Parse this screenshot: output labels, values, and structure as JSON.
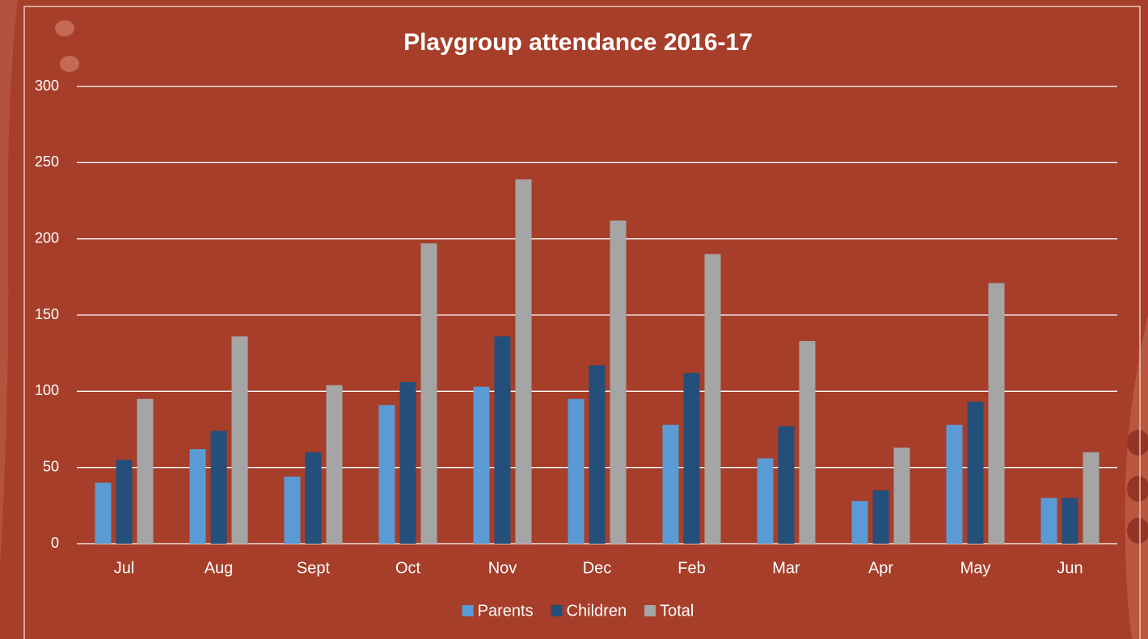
{
  "chart_data": {
    "type": "bar",
    "title": "Playgroup attendance 2016-17",
    "categories": [
      "Jul",
      "Aug",
      "Sept",
      "Oct",
      "Nov",
      "Dec",
      "Feb",
      "Mar",
      "Apr",
      "May",
      "Jun"
    ],
    "series": [
      {
        "name": "Parents",
        "color": "#5b9bd5",
        "values": [
          40,
          62,
          44,
          91,
          103,
          95,
          78,
          56,
          28,
          78,
          30
        ]
      },
      {
        "name": "Children",
        "color": "#234f7a",
        "values": [
          55,
          74,
          60,
          106,
          136,
          117,
          112,
          77,
          35,
          93,
          30
        ]
      },
      {
        "name": "Total",
        "color": "#a5a5a5",
        "values": [
          95,
          136,
          104,
          197,
          239,
          212,
          190,
          133,
          63,
          171,
          60
        ]
      }
    ],
    "ylim": [
      0,
      300
    ],
    "yticks": [
      0,
      50,
      100,
      150,
      200,
      250,
      300
    ],
    "grid": true,
    "legend": "bottom"
  }
}
